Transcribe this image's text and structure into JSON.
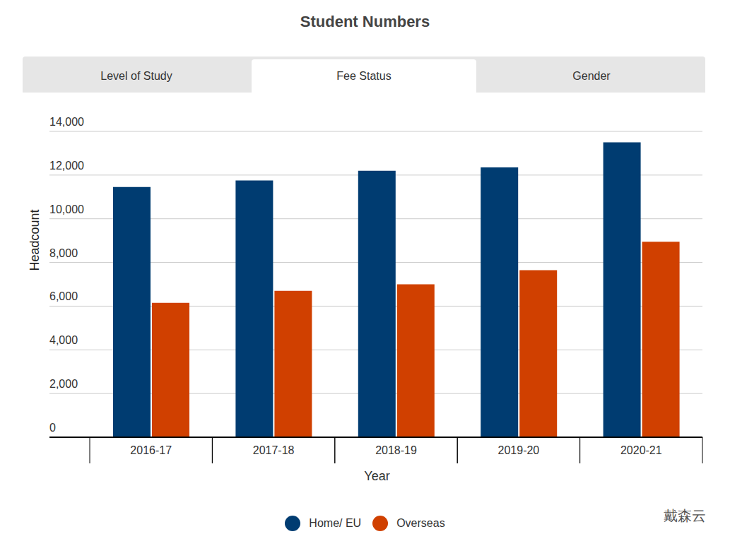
{
  "chart_data": {
    "type": "bar",
    "title": "Student Numbers",
    "tabs": [
      "Level of Study",
      "Fee Status",
      "Gender"
    ],
    "active_tab": "Fee Status",
    "x_label": "Year",
    "y_label": "Headcount",
    "categories": [
      "2016-17",
      "2017-18",
      "2018-19",
      "2019-20",
      "2020-21"
    ],
    "series": [
      {
        "name": "Home/ EU",
        "color": "#003c71",
        "values": [
          11450,
          11750,
          12200,
          12350,
          13500
        ]
      },
      {
        "name": "Overseas",
        "color": "#d04000",
        "values": [
          6150,
          6700,
          7000,
          7650,
          8950
        ]
      }
    ],
    "ylim": [
      0,
      14000
    ],
    "yticks": [
      0,
      {
        "value": 2000,
        "label": "2,000"
      },
      {
        "value": 4000,
        "label": "4,000"
      },
      {
        "value": 6000,
        "label": "6,000"
      },
      {
        "value": 8000,
        "label": "8,000"
      },
      {
        "value": 10000,
        "label": "10,000"
      },
      {
        "value": 12000,
        "label": "12,000"
      },
      {
        "value": 14000,
        "label": "14,000"
      }
    ],
    "grid": true,
    "legend": "bottom",
    "annotations": [
      "戴森云"
    ]
  }
}
